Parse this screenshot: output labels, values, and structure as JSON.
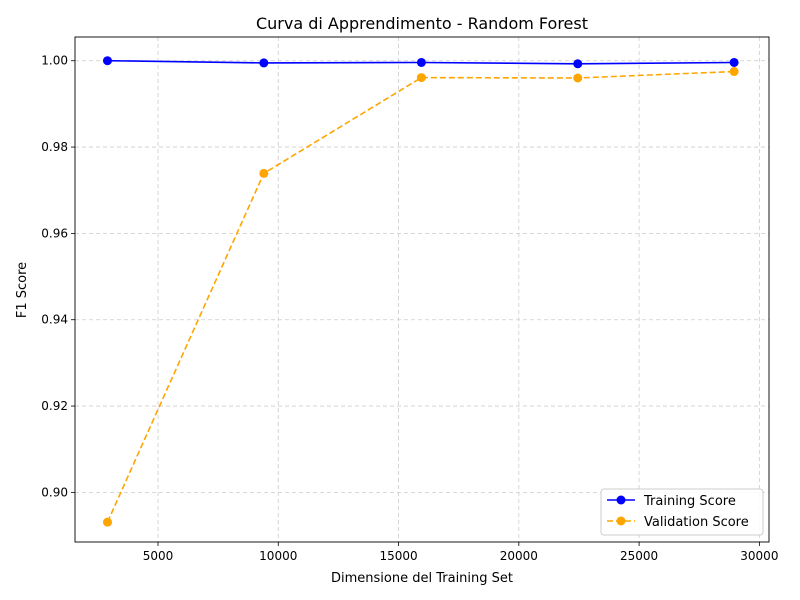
{
  "chart_data": {
    "type": "line",
    "title": "Curva di Apprendimento - Random Forest",
    "xlabel": "Dimensione del Training Set",
    "ylabel": "F1 Score",
    "xlim": [
      1550,
      30400
    ],
    "ylim": [
      0.8885,
      1.0055
    ],
    "xticks": [
      5000,
      10000,
      15000,
      20000,
      25000,
      30000
    ],
    "xtick_labels": [
      "5000",
      "10000",
      "15000",
      "20000",
      "25000",
      "30000"
    ],
    "yticks": [
      0.9,
      0.92,
      0.94,
      0.96,
      0.98,
      1.0
    ],
    "ytick_labels": [
      "0.90",
      "0.92",
      "0.94",
      "0.96",
      "0.98",
      "1.00"
    ],
    "grid": true,
    "legend_position": "lower-right",
    "series": [
      {
        "name": "Training Score",
        "color": "#0000ff",
        "linestyle": "solid",
        "marker": "circle",
        "x": [
          2900,
          9400,
          15950,
          22450,
          28950
        ],
        "y": [
          1.0,
          0.9995,
          0.9996,
          0.9993,
          0.9996
        ]
      },
      {
        "name": "Validation Score",
        "color": "#ffa500",
        "linestyle": "dashed",
        "marker": "circle",
        "x": [
          2900,
          9400,
          15950,
          22450,
          28950
        ],
        "y": [
          0.8931,
          0.9739,
          0.9961,
          0.996,
          0.9975
        ]
      }
    ]
  }
}
